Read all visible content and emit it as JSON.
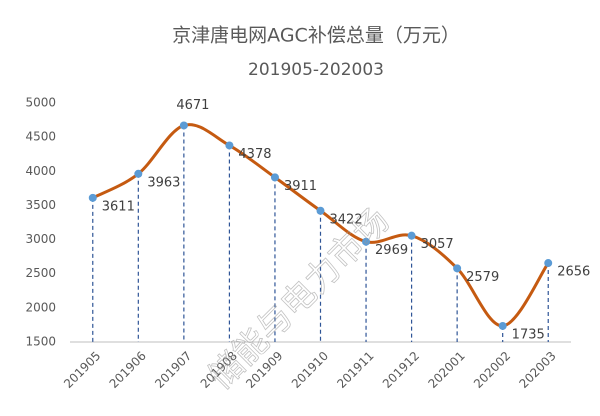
{
  "chart_data": {
    "type": "line",
    "title": "京津唐电网AGC补偿总量（万元）",
    "subtitle": "201905-202003",
    "watermark": "储能与电力市场",
    "categories": [
      "201905",
      "201906",
      "201907",
      "201908",
      "201909",
      "201910",
      "201911",
      "201912",
      "202001",
      "202002",
      "202003"
    ],
    "values": [
      3611,
      3963,
      4671,
      4378,
      3911,
      3422,
      2969,
      3057,
      2579,
      1735,
      2656
    ],
    "color": "#c55a11",
    "marker_color": "#5b9bd5",
    "smooth": true,
    "drop_lines": true,
    "ylim": [
      1500,
      5000
    ],
    "yticks": [
      1500,
      2000,
      2500,
      3000,
      3500,
      4000,
      4500,
      5000
    ],
    "grid": false
  }
}
